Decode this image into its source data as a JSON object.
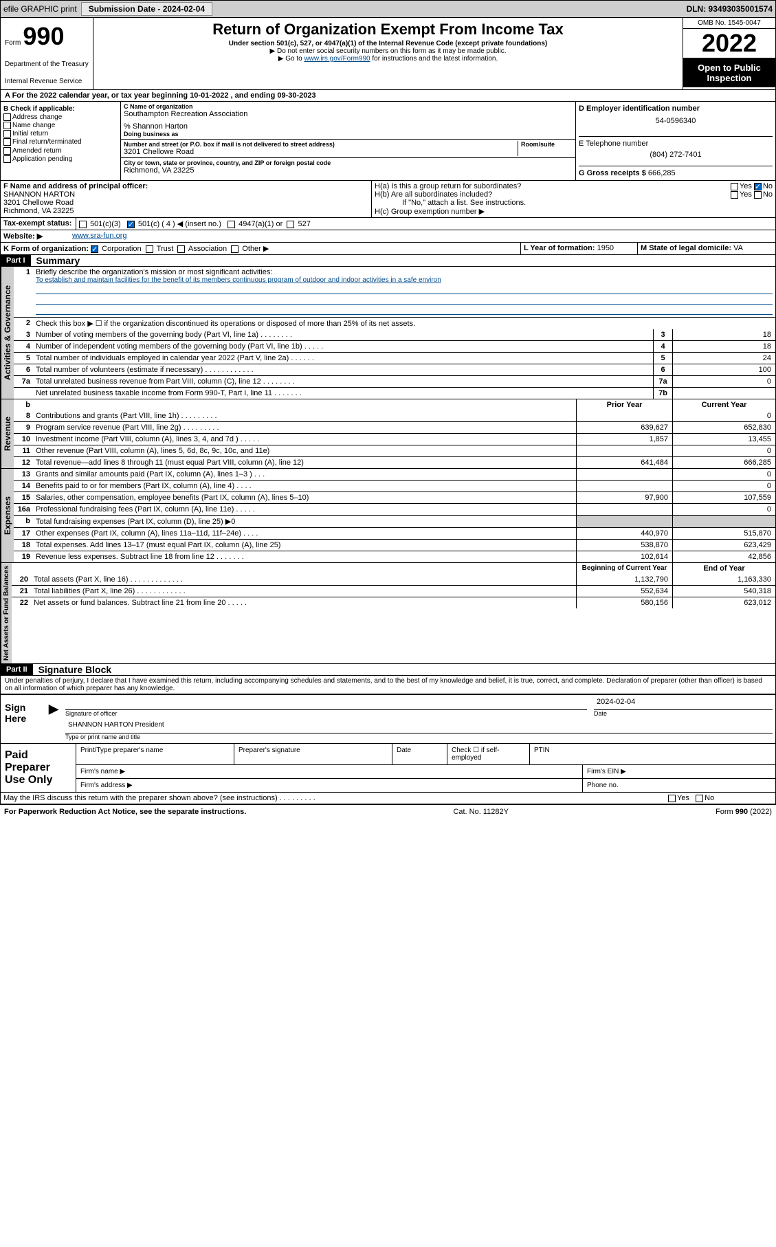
{
  "topbar": {
    "efile": "efile GRAPHIC print",
    "submission_label": "Submission Date - 2024-02-04",
    "dln_label": "DLN: 93493035001574"
  },
  "header": {
    "form_label": "Form",
    "form_number": "990",
    "dept": "Department of the Treasury",
    "irs": "Internal Revenue Service",
    "title": "Return of Organization Exempt From Income Tax",
    "sub1": "Under section 501(c), 527, or 4947(a)(1) of the Internal Revenue Code (except private foundations)",
    "sub2": "▶ Do not enter social security numbers on this form as it may be made public.",
    "sub3_prefix": "▶ Go to ",
    "sub3_link": "www.irs.gov/Form990",
    "sub3_suffix": " for instructions and the latest information.",
    "omb": "OMB No. 1545-0047",
    "year": "2022",
    "open": "Open to Public Inspection"
  },
  "period": "A For the 2022 calendar year, or tax year beginning 10-01-2022   , and ending 09-30-2023",
  "checkB": {
    "label": "B Check if applicable:",
    "items": [
      "Address change",
      "Name change",
      "Initial return",
      "Final return/terminated",
      "Amended return",
      "Application pending"
    ]
  },
  "blockC": {
    "name_label": "C Name of organization",
    "name": "Southampton Recreation Association",
    "care_of": "% Shannon Harton",
    "dba_label": "Doing business as",
    "addr_label": "Number and street (or P.O. box if mail is not delivered to street address)",
    "room_label": "Room/suite",
    "addr": "3201 Chellowe Road",
    "city_label": "City or town, state or province, country, and ZIP or foreign postal code",
    "city": "Richmond, VA  23225"
  },
  "blockD": {
    "label": "D Employer identification number",
    "value": "54-0596340"
  },
  "blockE": {
    "label": "E Telephone number",
    "value": "(804) 272-7401"
  },
  "blockG": {
    "label": "G Gross receipts $",
    "value": "666,285"
  },
  "blockF": {
    "label": "F  Name and address of principal officer:",
    "name": "SHANNON HARTON",
    "addr1": "3201 Chellowe Road",
    "addr2": "Richmond, VA  23225"
  },
  "blockH": {
    "a": "H(a)  Is this a group return for subordinates?",
    "b": "H(b)  Are all subordinates included?",
    "bnote": "If \"No,\" attach a list. See instructions.",
    "c": "H(c)  Group exemption number ▶",
    "yes": "Yes",
    "no": "No"
  },
  "blockI": {
    "label": "Tax-exempt status:",
    "o501c3": "501(c)(3)",
    "o501c": "501(c) ( 4 ) ◀ (insert no.)",
    "o4947": "4947(a)(1) or",
    "o527": "527"
  },
  "blockJ": {
    "label": "Website: ▶",
    "value": "www.sra-fun.org"
  },
  "blockK": {
    "label": "K Form of organization:",
    "corp": "Corporation",
    "trust": "Trust",
    "assoc": "Association",
    "other": "Other ▶"
  },
  "blockL": {
    "label": "L Year of formation:",
    "value": "1950"
  },
  "blockM": {
    "label": "M State of legal domicile:",
    "value": "VA"
  },
  "partI": {
    "label": "Part I",
    "title": "Summary"
  },
  "summary": {
    "q1": "Briefly describe the organization's mission or most significant activities:",
    "mission": "To establish and maintain facilities for the benefit of its members continuous program of outdoor and indoor activities in a safe environ",
    "q2": "Check this box ▶ ☐  if the organization discontinued its operations or disposed of more than 25% of its net assets.",
    "rows_gov": [
      {
        "n": "3",
        "t": "Number of voting members of the governing body (Part VI, line 1a)  .   .   .   .   .   .   .   .",
        "box": "3",
        "v": "18"
      },
      {
        "n": "4",
        "t": "Number of independent voting members of the governing body (Part VI, line 1b)  .   .   .   .   .",
        "box": "4",
        "v": "18"
      },
      {
        "n": "5",
        "t": "Total number of individuals employed in calendar year 2022 (Part V, line 2a)  .   .   .   .   .   .",
        "box": "5",
        "v": "24"
      },
      {
        "n": "6",
        "t": "Total number of volunteers (estimate if necessary)  .   .   .   .   .   .   .   .   .   .   .   .",
        "box": "6",
        "v": "100"
      },
      {
        "n": "7a",
        "t": "Total unrelated business revenue from Part VIII, column (C), line 12  .   .   .   .   .   .   .   .",
        "box": "7a",
        "v": "0"
      },
      {
        "n": "",
        "t": "Net unrelated business taxable income from Form 990-T, Part I, line 11  .   .   .   .   .   .   .",
        "box": "7b",
        "v": ""
      }
    ],
    "col_prior": "Prior Year",
    "col_curr": "Current Year",
    "rows_rev": [
      {
        "n": "8",
        "t": "Contributions and grants (Part VIII, line 1h)  .   .   .   .   .   .   .   .   .",
        "p": "",
        "c": "0"
      },
      {
        "n": "9",
        "t": "Program service revenue (Part VIII, line 2g)  .   .   .   .   .   .   .   .   .",
        "p": "639,627",
        "c": "652,830"
      },
      {
        "n": "10",
        "t": "Investment income (Part VIII, column (A), lines 3, 4, and 7d )  .   .   .   .   .",
        "p": "1,857",
        "c": "13,455"
      },
      {
        "n": "11",
        "t": "Other revenue (Part VIII, column (A), lines 5, 6d, 8c, 9c, 10c, and 11e)",
        "p": "",
        "c": "0"
      },
      {
        "n": "12",
        "t": "Total revenue—add lines 8 through 11 (must equal Part VIII, column (A), line 12)",
        "p": "641,484",
        "c": "666,285"
      }
    ],
    "rows_exp": [
      {
        "n": "13",
        "t": "Grants and similar amounts paid (Part IX, column (A), lines 1–3 )  .   .   .",
        "p": "",
        "c": "0"
      },
      {
        "n": "14",
        "t": "Benefits paid to or for members (Part IX, column (A), line 4)  .   .   .   .",
        "p": "",
        "c": "0"
      },
      {
        "n": "15",
        "t": "Salaries, other compensation, employee benefits (Part IX, column (A), lines 5–10)",
        "p": "97,900",
        "c": "107,559"
      },
      {
        "n": "16a",
        "t": "Professional fundraising fees (Part IX, column (A), line 11e)  .   .   .   .   .",
        "p": "",
        "c": "0"
      },
      {
        "n": "b",
        "t": "Total fundraising expenses (Part IX, column (D), line 25) ▶0",
        "p": "SHADE",
        "c": "SHADE"
      },
      {
        "n": "17",
        "t": "Other expenses (Part IX, column (A), lines 11a–11d, 11f–24e)  .   .   .   .",
        "p": "440,970",
        "c": "515,870"
      },
      {
        "n": "18",
        "t": "Total expenses. Add lines 13–17 (must equal Part IX, column (A), line 25)",
        "p": "538,870",
        "c": "623,429"
      },
      {
        "n": "19",
        "t": "Revenue less expenses. Subtract line 18 from line 12  .   .   .   .   .   .   .",
        "p": "102,614",
        "c": "42,856"
      }
    ],
    "col_begin": "Beginning of Current Year",
    "col_end": "End of Year",
    "rows_net": [
      {
        "n": "20",
        "t": "Total assets (Part X, line 16)  .   .   .   .   .   .   .   .   .   .   .   .   .",
        "p": "1,132,790",
        "c": "1,163,330"
      },
      {
        "n": "21",
        "t": "Total liabilities (Part X, line 26)  .   .   .   .   .   .   .   .   .   .   .   .",
        "p": "552,634",
        "c": "540,318"
      },
      {
        "n": "22",
        "t": "Net assets or fund balances. Subtract line 21 from line 20  .   .   .   .   .",
        "p": "580,156",
        "c": "623,012"
      }
    ]
  },
  "tabs": {
    "gov": "Activities & Governance",
    "rev": "Revenue",
    "exp": "Expenses",
    "net": "Net Assets or Fund Balances"
  },
  "partII": {
    "label": "Part II",
    "title": "Signature Block"
  },
  "sig": {
    "penalty": "Under penalties of perjury, I declare that I have examined this return, including accompanying schedules and statements, and to the best of my knowledge and belief, it is true, correct, and complete. Declaration of preparer (other than officer) is based on all information of which preparer has any knowledge.",
    "sign_here": "Sign Here",
    "sig_of_officer": "Signature of officer",
    "date": "Date",
    "date_val": "2024-02-04",
    "name": "SHANNON HARTON  President",
    "name_lbl": "Type or print name and title"
  },
  "prep": {
    "title": "Paid Preparer Use Only",
    "h1": "Print/Type preparer's name",
    "h2": "Preparer's signature",
    "h3": "Date",
    "h4a": "Check ☐ if self-employed",
    "h4": "PTIN",
    "firm_name": "Firm's name   ▶",
    "firm_ein": "Firm's EIN ▶",
    "firm_addr": "Firm's address ▶",
    "phone": "Phone no."
  },
  "footer": {
    "discuss": "May the IRS discuss this return with the preparer shown above? (see instructions)  .   .   .   .   .   .   .   .   .",
    "yes": "Yes",
    "no": "No",
    "paperwork": "For Paperwork Reduction Act Notice, see the separate instructions.",
    "cat": "Cat. No. 11282Y",
    "form": "Form 990 (2022)"
  }
}
